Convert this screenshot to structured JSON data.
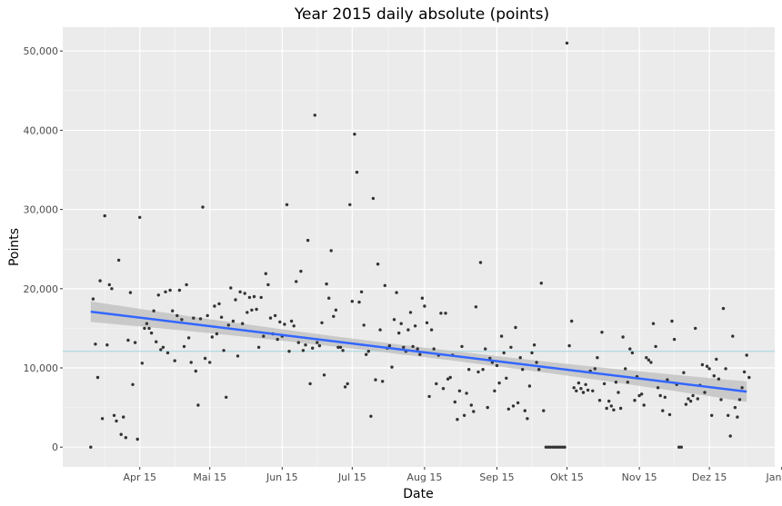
{
  "chart_data": {
    "type": "scatter",
    "title": "Year 2015 daily absolute (points)",
    "xlabel": "Date",
    "ylabel": "Points",
    "x_axis": {
      "type": "date",
      "range": [
        "2015-03-13",
        "2016-01-12"
      ],
      "ticks": [
        {
          "date": "2015-04-15",
          "label": "Apr 15"
        },
        {
          "date": "2015-05-15",
          "label": "Mai 15"
        },
        {
          "date": "2015-06-15",
          "label": "Jun 15"
        },
        {
          "date": "2015-07-15",
          "label": "Jul 15"
        },
        {
          "date": "2015-08-15",
          "label": "Aug 15"
        },
        {
          "date": "2015-09-15",
          "label": "Sep 15"
        },
        {
          "date": "2015-10-15",
          "label": "Okt 15"
        },
        {
          "date": "2015-11-15",
          "label": "Nov 15"
        },
        {
          "date": "2015-12-15",
          "label": "Dez 15"
        },
        {
          "date": "2016-01-15",
          "label": "Jan 16"
        }
      ]
    },
    "y_axis": {
      "range": [
        -2500,
        53000
      ],
      "ticks": [
        {
          "value": 0,
          "label": "0"
        },
        {
          "value": 10000,
          "label": "10,000"
        },
        {
          "value": 20000,
          "label": "20,000"
        },
        {
          "value": 30000,
          "label": "30,000"
        },
        {
          "value": 40000,
          "label": "40,000"
        },
        {
          "value": 50000,
          "label": "50,000"
        }
      ]
    },
    "grid": true,
    "mean_line": 12100,
    "trend": {
      "start": [
        "2015-03-25",
        17100
      ],
      "end": [
        "2015-12-31",
        7000
      ],
      "ci_halfwidth_start": 1300,
      "ci_halfwidth_mid": 600,
      "ci_halfwidth_end": 1300
    },
    "colors": {
      "panel": "#ebebeb",
      "grid_major": "#ffffff",
      "grid_minor": "#f5f5f5",
      "points": "#333333",
      "trend": "#3366ff",
      "ci_band": "#bdbdbd",
      "mean_line": "#a8d8e0"
    },
    "points": [
      [
        "2015-03-25",
        0
      ],
      [
        "2015-03-26",
        18700
      ],
      [
        "2015-03-27",
        13000
      ],
      [
        "2015-03-28",
        8800
      ],
      [
        "2015-03-29",
        21000
      ],
      [
        "2015-03-30",
        3600
      ],
      [
        "2015-03-31",
        29200
      ],
      [
        "2015-04-01",
        12900
      ],
      [
        "2015-04-02",
        20500
      ],
      [
        "2015-04-03",
        20000
      ],
      [
        "2015-04-04",
        4000
      ],
      [
        "2015-04-05",
        3300
      ],
      [
        "2015-04-06",
        23600
      ],
      [
        "2015-04-07",
        1600
      ],
      [
        "2015-04-08",
        3800
      ],
      [
        "2015-04-09",
        1200
      ],
      [
        "2015-04-10",
        13500
      ],
      [
        "2015-04-11",
        19500
      ],
      [
        "2015-04-12",
        7900
      ],
      [
        "2015-04-13",
        13200
      ],
      [
        "2015-04-14",
        1000
      ],
      [
        "2015-04-15",
        29000
      ],
      [
        "2015-04-16",
        10600
      ],
      [
        "2015-04-17",
        15000
      ],
      [
        "2015-04-18",
        15600
      ],
      [
        "2015-04-19",
        15000
      ],
      [
        "2015-04-20",
        14400
      ],
      [
        "2015-04-21",
        17200
      ],
      [
        "2015-04-22",
        13300
      ],
      [
        "2015-04-23",
        19200
      ],
      [
        "2015-04-24",
        12300
      ],
      [
        "2015-04-25",
        12600
      ],
      [
        "2015-04-26",
        19600
      ],
      [
        "2015-04-27",
        11900
      ],
      [
        "2015-04-28",
        19800
      ],
      [
        "2015-04-29",
        17200
      ],
      [
        "2015-04-30",
        10900
      ],
      [
        "2015-05-01",
        16600
      ],
      [
        "2015-05-02",
        19800
      ],
      [
        "2015-05-03",
        16100
      ],
      [
        "2015-05-04",
        12700
      ],
      [
        "2015-05-05",
        20500
      ],
      [
        "2015-05-06",
        13800
      ],
      [
        "2015-05-07",
        10700
      ],
      [
        "2015-05-08",
        16300
      ],
      [
        "2015-05-09",
        9600
      ],
      [
        "2015-05-10",
        5300
      ],
      [
        "2015-05-11",
        16200
      ],
      [
        "2015-05-12",
        30300
      ],
      [
        "2015-05-13",
        11200
      ],
      [
        "2015-05-14",
        16600
      ],
      [
        "2015-05-15",
        10700
      ],
      [
        "2015-05-16",
        13900
      ],
      [
        "2015-05-17",
        17800
      ],
      [
        "2015-05-18",
        14300
      ],
      [
        "2015-05-19",
        18100
      ],
      [
        "2015-05-20",
        16400
      ],
      [
        "2015-05-21",
        12200
      ],
      [
        "2015-05-22",
        6300
      ],
      [
        "2015-05-23",
        15400
      ],
      [
        "2015-05-24",
        20100
      ],
      [
        "2015-05-25",
        15900
      ],
      [
        "2015-05-26",
        18600
      ],
      [
        "2015-05-27",
        11500
      ],
      [
        "2015-05-28",
        19600
      ],
      [
        "2015-05-29",
        15600
      ],
      [
        "2015-05-30",
        19400
      ],
      [
        "2015-05-31",
        17000
      ],
      [
        "2015-06-01",
        18900
      ],
      [
        "2015-06-02",
        17300
      ],
      [
        "2015-06-03",
        19000
      ],
      [
        "2015-06-04",
        17400
      ],
      [
        "2015-06-05",
        12600
      ],
      [
        "2015-06-06",
        18900
      ],
      [
        "2015-06-07",
        14000
      ],
      [
        "2015-06-08",
        21900
      ],
      [
        "2015-06-09",
        20500
      ],
      [
        "2015-06-10",
        16300
      ],
      [
        "2015-06-11",
        14300
      ],
      [
        "2015-06-12",
        16600
      ],
      [
        "2015-06-13",
        13600
      ],
      [
        "2015-06-14",
        15800
      ],
      [
        "2015-06-15",
        14000
      ],
      [
        "2015-06-16",
        15500
      ],
      [
        "2015-06-17",
        30600
      ],
      [
        "2015-06-18",
        12100
      ],
      [
        "2015-06-19",
        15900
      ],
      [
        "2015-06-20",
        15300
      ],
      [
        "2015-06-21",
        20900
      ],
      [
        "2015-06-22",
        13200
      ],
      [
        "2015-06-23",
        22200
      ],
      [
        "2015-06-24",
        12200
      ],
      [
        "2015-06-25",
        12900
      ],
      [
        "2015-06-26",
        26100
      ],
      [
        "2015-06-27",
        8000
      ],
      [
        "2015-06-28",
        12500
      ],
      [
        "2015-06-29",
        41900
      ],
      [
        "2015-06-30",
        13200
      ],
      [
        "2015-07-01",
        12800
      ],
      [
        "2015-07-02",
        15700
      ],
      [
        "2015-07-03",
        9100
      ],
      [
        "2015-07-04",
        20600
      ],
      [
        "2015-07-05",
        18800
      ],
      [
        "2015-07-06",
        24800
      ],
      [
        "2015-07-07",
        16500
      ],
      [
        "2015-07-08",
        17300
      ],
      [
        "2015-07-09",
        12600
      ],
      [
        "2015-07-10",
        12600
      ],
      [
        "2015-07-11",
        12200
      ],
      [
        "2015-07-12",
        7600
      ],
      [
        "2015-07-13",
        8000
      ],
      [
        "2015-07-14",
        30600
      ],
      [
        "2015-07-15",
        18400
      ],
      [
        "2015-07-16",
        39500
      ],
      [
        "2015-07-17",
        34700
      ],
      [
        "2015-07-18",
        18300
      ],
      [
        "2015-07-19",
        19600
      ],
      [
        "2015-07-20",
        15400
      ],
      [
        "2015-07-21",
        11700
      ],
      [
        "2015-07-22",
        12100
      ],
      [
        "2015-07-23",
        3900
      ],
      [
        "2015-07-24",
        31400
      ],
      [
        "2015-07-25",
        8500
      ],
      [
        "2015-07-26",
        23100
      ],
      [
        "2015-07-27",
        14800
      ],
      [
        "2015-07-28",
        8300
      ],
      [
        "2015-07-29",
        20400
      ],
      [
        "2015-07-30",
        12500
      ],
      [
        "2015-07-31",
        12800
      ],
      [
        "2015-08-01",
        10100
      ],
      [
        "2015-08-02",
        16100
      ],
      [
        "2015-08-03",
        19500
      ],
      [
        "2015-08-04",
        14400
      ],
      [
        "2015-08-05",
        15600
      ],
      [
        "2015-08-06",
        12600
      ],
      [
        "2015-08-07",
        12100
      ],
      [
        "2015-08-08",
        14800
      ],
      [
        "2015-08-09",
        17000
      ],
      [
        "2015-08-10",
        12700
      ],
      [
        "2015-08-11",
        15300
      ],
      [
        "2015-08-12",
        12400
      ],
      [
        "2015-08-13",
        11700
      ],
      [
        "2015-08-14",
        18800
      ],
      [
        "2015-08-15",
        17800
      ],
      [
        "2015-08-16",
        15700
      ],
      [
        "2015-08-17",
        6400
      ],
      [
        "2015-08-18",
        14800
      ],
      [
        "2015-08-19",
        12400
      ],
      [
        "2015-08-20",
        8000
      ],
      [
        "2015-08-21",
        11600
      ],
      [
        "2015-08-22",
        16900
      ],
      [
        "2015-08-23",
        7400
      ],
      [
        "2015-08-24",
        16900
      ],
      [
        "2015-08-25",
        8600
      ],
      [
        "2015-08-26",
        8800
      ],
      [
        "2015-08-27",
        11600
      ],
      [
        "2015-08-28",
        5700
      ],
      [
        "2015-08-29",
        3500
      ],
      [
        "2015-08-30",
        7100
      ],
      [
        "2015-08-31",
        12700
      ],
      [
        "2015-09-01",
        4000
      ],
      [
        "2015-09-02",
        6800
      ],
      [
        "2015-09-03",
        9800
      ],
      [
        "2015-09-04",
        5300
      ],
      [
        "2015-09-05",
        4500
      ],
      [
        "2015-09-06",
        17700
      ],
      [
        "2015-09-07",
        9500
      ],
      [
        "2015-09-08",
        23300
      ],
      [
        "2015-09-09",
        9800
      ],
      [
        "2015-09-10",
        12400
      ],
      [
        "2015-09-11",
        5000
      ],
      [
        "2015-09-12",
        11200
      ],
      [
        "2015-09-13",
        10700
      ],
      [
        "2015-09-14",
        7100
      ],
      [
        "2015-09-15",
        10300
      ],
      [
        "2015-09-16",
        8100
      ],
      [
        "2015-09-17",
        14000
      ],
      [
        "2015-09-18",
        11900
      ],
      [
        "2015-09-19",
        8700
      ],
      [
        "2015-09-20",
        4800
      ],
      [
        "2015-09-21",
        12600
      ],
      [
        "2015-09-22",
        5200
      ],
      [
        "2015-09-23",
        15100
      ],
      [
        "2015-09-24",
        5600
      ],
      [
        "2015-09-25",
        11300
      ],
      [
        "2015-09-26",
        9800
      ],
      [
        "2015-09-27",
        4600
      ],
      [
        "2015-09-28",
        3600
      ],
      [
        "2015-09-29",
        7700
      ],
      [
        "2015-09-30",
        11900
      ],
      [
        "2015-10-01",
        12900
      ],
      [
        "2015-10-02",
        10700
      ],
      [
        "2015-10-03",
        9800
      ],
      [
        "2015-10-04",
        20700
      ],
      [
        "2015-10-05",
        4600
      ],
      [
        "2015-10-06",
        0
      ],
      [
        "2015-10-07",
        0
      ],
      [
        "2015-10-08",
        0
      ],
      [
        "2015-10-09",
        0
      ],
      [
        "2015-10-10",
        0
      ],
      [
        "2015-10-11",
        0
      ],
      [
        "2015-10-12",
        0
      ],
      [
        "2015-10-13",
        0
      ],
      [
        "2015-10-14",
        0
      ],
      [
        "2015-10-15",
        51000
      ],
      [
        "2015-10-16",
        12800
      ],
      [
        "2015-10-17",
        15900
      ],
      [
        "2015-10-18",
        7500
      ],
      [
        "2015-10-19",
        7100
      ],
      [
        "2015-10-20",
        8100
      ],
      [
        "2015-10-21",
        7400
      ],
      [
        "2015-10-22",
        6900
      ],
      [
        "2015-10-23",
        7900
      ],
      [
        "2015-10-24",
        7200
      ],
      [
        "2015-10-25",
        9600
      ],
      [
        "2015-10-26",
        7100
      ],
      [
        "2015-10-27",
        9900
      ],
      [
        "2015-10-28",
        11300
      ],
      [
        "2015-10-29",
        5900
      ],
      [
        "2015-10-30",
        14500
      ],
      [
        "2015-10-31",
        8000
      ],
      [
        "2015-11-01",
        4900
      ],
      [
        "2015-11-02",
        5800
      ],
      [
        "2015-11-03",
        5200
      ],
      [
        "2015-11-04",
        4700
      ],
      [
        "2015-11-05",
        8200
      ],
      [
        "2015-11-06",
        6900
      ],
      [
        "2015-11-07",
        4900
      ],
      [
        "2015-11-08",
        13900
      ],
      [
        "2015-11-09",
        9900
      ],
      [
        "2015-11-10",
        8200
      ],
      [
        "2015-11-11",
        12400
      ],
      [
        "2015-11-12",
        11900
      ],
      [
        "2015-11-13",
        5900
      ],
      [
        "2015-11-14",
        8900
      ],
      [
        "2015-11-15",
        6500
      ],
      [
        "2015-11-16",
        6700
      ],
      [
        "2015-11-17",
        5300
      ],
      [
        "2015-11-18",
        11300
      ],
      [
        "2015-11-19",
        11000
      ],
      [
        "2015-11-20",
        10700
      ],
      [
        "2015-11-21",
        15600
      ],
      [
        "2015-11-22",
        12700
      ],
      [
        "2015-11-23",
        7500
      ],
      [
        "2015-11-24",
        6500
      ],
      [
        "2015-11-25",
        4600
      ],
      [
        "2015-11-26",
        6300
      ],
      [
        "2015-11-27",
        8500
      ],
      [
        "2015-11-28",
        4100
      ],
      [
        "2015-11-29",
        15900
      ],
      [
        "2015-11-30",
        13600
      ],
      [
        "2015-12-01",
        7900
      ],
      [
        "2015-12-02",
        0
      ],
      [
        "2015-12-03",
        0
      ],
      [
        "2015-12-04",
        9400
      ],
      [
        "2015-12-05",
        5400
      ],
      [
        "2015-12-06",
        6100
      ],
      [
        "2015-12-07",
        5800
      ],
      [
        "2015-12-08",
        6500
      ],
      [
        "2015-12-09",
        15000
      ],
      [
        "2015-12-10",
        6100
      ],
      [
        "2015-12-11",
        7800
      ],
      [
        "2015-12-12",
        10400
      ],
      [
        "2015-12-13",
        6900
      ],
      [
        "2015-12-14",
        10200
      ],
      [
        "2015-12-15",
        9900
      ],
      [
        "2015-12-16",
        4000
      ],
      [
        "2015-12-17",
        9000
      ],
      [
        "2015-12-18",
        11100
      ],
      [
        "2015-12-19",
        8600
      ],
      [
        "2015-12-20",
        6000
      ],
      [
        "2015-12-21",
        17500
      ],
      [
        "2015-12-22",
        9900
      ],
      [
        "2015-12-23",
        4000
      ],
      [
        "2015-12-24",
        1400
      ],
      [
        "2015-12-25",
        14000
      ],
      [
        "2015-12-26",
        5000
      ],
      [
        "2015-12-27",
        3800
      ],
      [
        "2015-12-28",
        6000
      ],
      [
        "2015-12-29",
        7500
      ],
      [
        "2015-12-30",
        9500
      ],
      [
        "2015-12-31",
        11600
      ],
      [
        "2016-01-01",
        8800
      ]
    ]
  }
}
